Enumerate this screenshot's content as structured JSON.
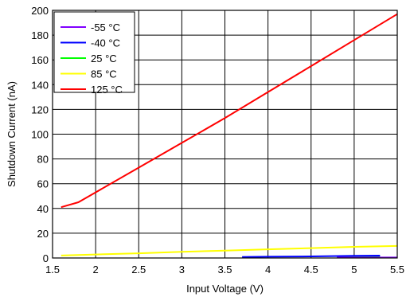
{
  "chart_data": {
    "type": "line",
    "title": "",
    "xlabel": "Input Voltage (V)",
    "ylabel": "Shutdown Current (nA)",
    "xlim": [
      1.5,
      5.5
    ],
    "ylim": [
      0,
      200
    ],
    "xticks": [
      1.5,
      2,
      2.5,
      3,
      3.5,
      4,
      4.5,
      5,
      5.5
    ],
    "xtick_labels": [
      "1.5",
      "2",
      "2.5",
      "3",
      "3.5",
      "4",
      "4.5",
      "5",
      "5.5"
    ],
    "yticks": [
      0,
      20,
      40,
      60,
      80,
      100,
      120,
      140,
      160,
      180,
      200
    ],
    "ytick_labels": [
      "0",
      "20",
      "40",
      "60",
      "80",
      "100",
      "120",
      "140",
      "160",
      "180",
      "200"
    ],
    "grid": true,
    "legend_position": "top-left",
    "series": [
      {
        "name": "-55 °C",
        "color": "#8000ff",
        "x": [
          4.8,
          5.5
        ],
        "y": [
          0.3,
          0.4
        ]
      },
      {
        "name": "-40 °C",
        "color": "#0000ff",
        "x": [
          3.7,
          4.0,
          4.5,
          5.0,
          5.3
        ],
        "y": [
          0.8,
          1.0,
          1.3,
          1.8,
          1.9
        ]
      },
      {
        "name": "25 °C",
        "color": "#00ff00",
        "x": [
          4.8,
          5.0,
          5.3
        ],
        "y": [
          1.0,
          1.2,
          1.3
        ]
      },
      {
        "name": "85 °C",
        "color": "#ffff00",
        "x": [
          1.6,
          2.0,
          2.5,
          3.0,
          3.5,
          4.0,
          4.5,
          5.0,
          5.5
        ],
        "y": [
          2.0,
          2.8,
          3.8,
          5.0,
          6.0,
          7.0,
          8.0,
          9.0,
          9.7
        ]
      },
      {
        "name": "125 °C",
        "color": "#ff0000",
        "x": [
          1.6,
          1.8,
          2.0,
          2.5,
          3.0,
          3.5,
          4.0,
          4.5,
          5.0,
          5.5
        ],
        "y": [
          41,
          45,
          53,
          73,
          93,
          113,
          134,
          155,
          176,
          197
        ]
      }
    ]
  }
}
